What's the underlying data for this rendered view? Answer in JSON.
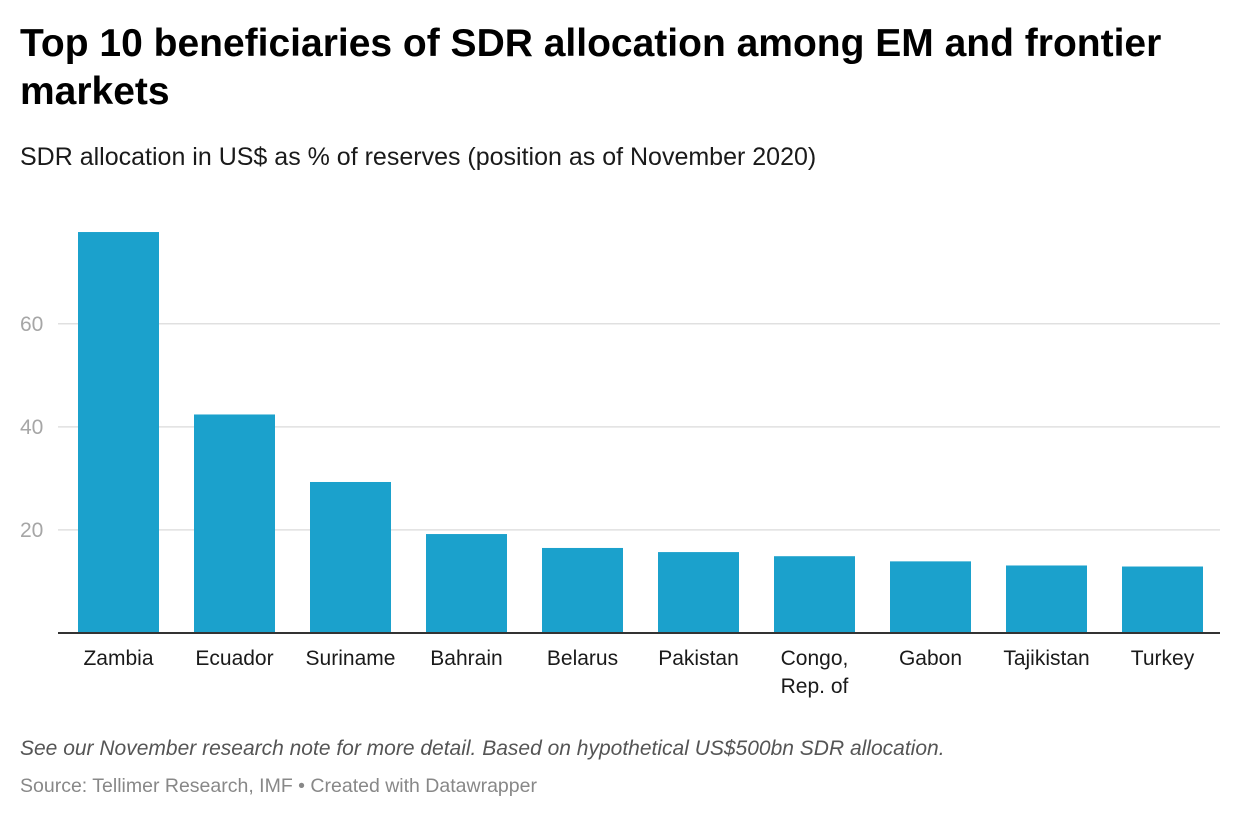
{
  "header": {
    "title": "Top 10 beneficiaries of SDR allocation among EM and frontier markets",
    "subtitle": "SDR allocation in US$ as % of reserves (position as of November 2020)"
  },
  "footer": {
    "note": "See our November research note for more detail. Based on hypothetical US$500bn SDR allocation.",
    "source_label": "Source: ",
    "source": "Tellimer Research, IMF",
    "separator": " • ",
    "credit": "Created with Datawrapper"
  },
  "chart_data": {
    "type": "bar",
    "title": "Top 10 beneficiaries of SDR allocation among EM and frontier markets",
    "subtitle": "SDR allocation in US$ as % of reserves (position as of November 2020)",
    "categories": [
      [
        "Zambia"
      ],
      [
        "Ecuador"
      ],
      [
        "Suriname"
      ],
      [
        "Bahrain"
      ],
      [
        "Belarus"
      ],
      [
        "Pakistan"
      ],
      [
        "Congo,",
        "Rep. of"
      ],
      [
        "Gabon"
      ],
      [
        "Tajikistan"
      ],
      [
        "Turkey"
      ]
    ],
    "values": [
      77.8,
      42.4,
      29.3,
      19.2,
      16.5,
      15.7,
      14.9,
      13.9,
      13.1,
      12.9
    ],
    "ylim": [
      0,
      78
    ],
    "yticks": [
      20,
      40,
      60
    ],
    "xlabel": "",
    "ylabel": "",
    "grid": true,
    "colors": {
      "bar": "#1ba1cc",
      "grid": "#e0e0e0",
      "axis": "#333333",
      "tick_label": "#a6a6a6",
      "category_label": "#1a1a1a"
    }
  }
}
